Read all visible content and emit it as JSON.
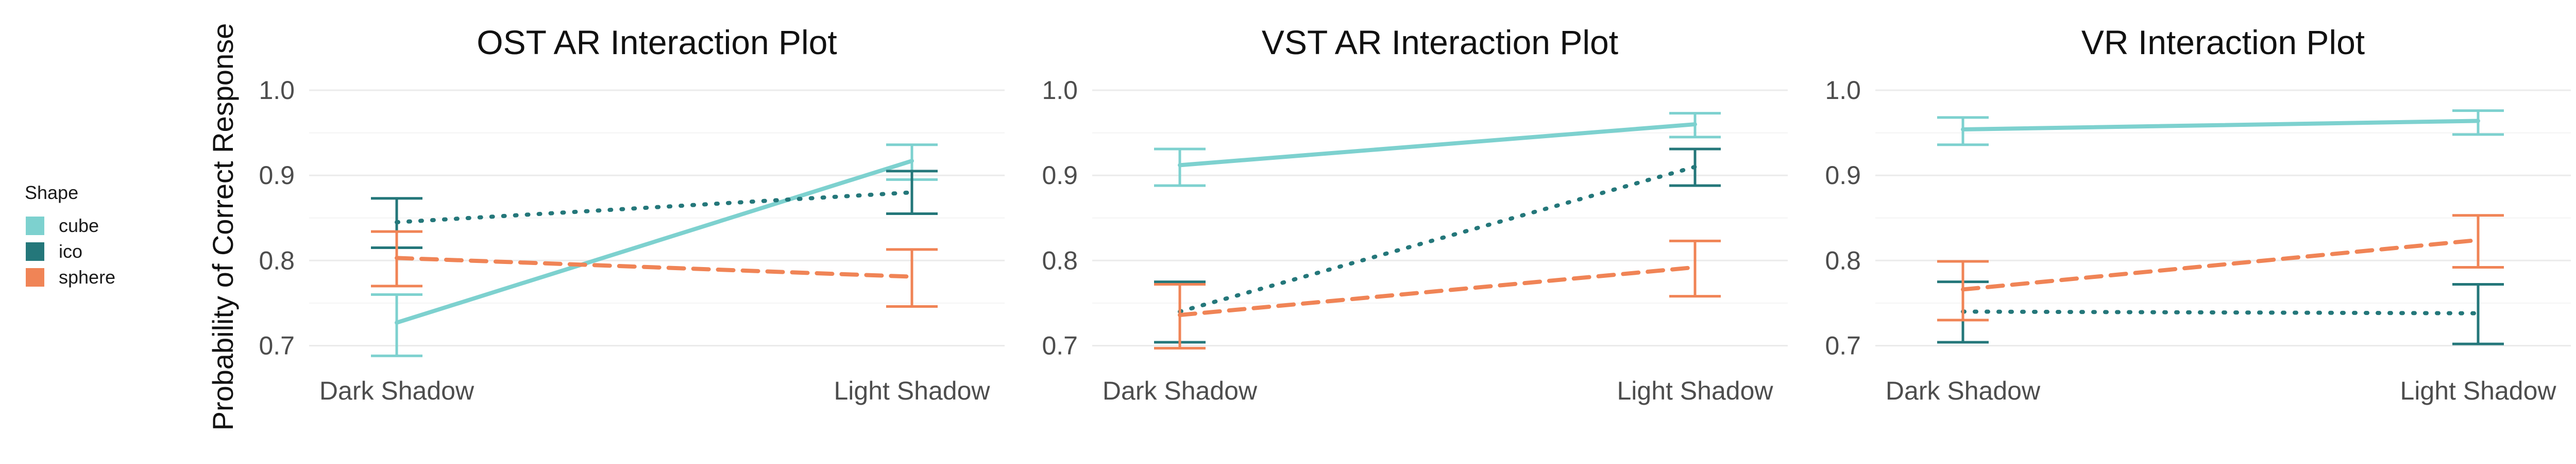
{
  "y_axis_label": "Probability of Correct Response",
  "legend": {
    "title": "Shape",
    "items": [
      {
        "label": "cube",
        "color": "#7dd1cf",
        "linestyle": "solid"
      },
      {
        "label": "ico",
        "color": "#24777a",
        "linestyle": "dotted"
      },
      {
        "label": "sphere",
        "color": "#f08456",
        "linestyle": "dashed"
      }
    ]
  },
  "chart_data": [
    {
      "type": "line",
      "title": "OST AR Interaction Plot",
      "categories": [
        "Dark Shadow",
        "Light Shadow"
      ],
      "ylabel": "Probability of Correct Response",
      "ylim": [
        0.67,
        1.0
      ],
      "yticks": [
        0.7,
        0.8,
        0.9,
        1.0
      ],
      "grid": true,
      "series": [
        {
          "name": "cube",
          "values": [
            0.727,
            0.917
          ],
          "lower": [
            0.688,
            0.895
          ],
          "upper": [
            0.76,
            0.936
          ]
        },
        {
          "name": "ico",
          "values": [
            0.845,
            0.88
          ],
          "lower": [
            0.815,
            0.855
          ],
          "upper": [
            0.873,
            0.905
          ]
        },
        {
          "name": "sphere",
          "values": [
            0.803,
            0.781
          ],
          "lower": [
            0.77,
            0.746
          ],
          "upper": [
            0.834,
            0.813
          ]
        }
      ]
    },
    {
      "type": "line",
      "title": "VST AR Interaction Plot",
      "categories": [
        "Dark Shadow",
        "Light Shadow"
      ],
      "ylabel": "",
      "ylim": [
        0.67,
        1.0
      ],
      "yticks": [
        0.7,
        0.8,
        0.9,
        1.0
      ],
      "grid": true,
      "series": [
        {
          "name": "cube",
          "values": [
            0.912,
            0.96
          ],
          "lower": [
            0.888,
            0.945
          ],
          "upper": [
            0.931,
            0.973
          ]
        },
        {
          "name": "ico",
          "values": [
            0.74,
            0.91
          ],
          "lower": [
            0.704,
            0.888
          ],
          "upper": [
            0.775,
            0.931
          ]
        },
        {
          "name": "sphere",
          "values": [
            0.736,
            0.792
          ],
          "lower": [
            0.697,
            0.758
          ],
          "upper": [
            0.772,
            0.823
          ]
        }
      ]
    },
    {
      "type": "line",
      "title": "VR Interaction Plot",
      "categories": [
        "Dark Shadow",
        "Light Shadow"
      ],
      "ylabel": "",
      "ylim": [
        0.67,
        1.0
      ],
      "yticks": [
        0.7,
        0.8,
        0.9,
        1.0
      ],
      "grid": true,
      "series": [
        {
          "name": "cube",
          "values": [
            0.954,
            0.964
          ],
          "lower": [
            0.936,
            0.948
          ],
          "upper": [
            0.968,
            0.976
          ]
        },
        {
          "name": "ico",
          "values": [
            0.74,
            0.738
          ],
          "lower": [
            0.704,
            0.702
          ],
          "upper": [
            0.775,
            0.772
          ]
        },
        {
          "name": "sphere",
          "values": [
            0.766,
            0.824
          ],
          "lower": [
            0.73,
            0.792
          ],
          "upper": [
            0.799,
            0.853
          ]
        }
      ]
    }
  ]
}
